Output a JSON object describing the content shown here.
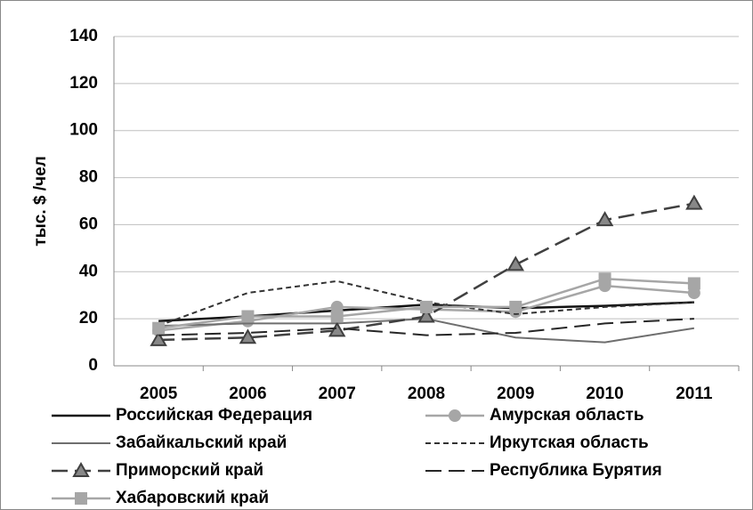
{
  "chart_data": {
    "type": "line",
    "y_label": "тыс. $ /чел",
    "categories": [
      "2005",
      "2006",
      "2007",
      "2008",
      "2009",
      "2010",
      "2011"
    ],
    "ylim": [
      0,
      140
    ],
    "yticks": [
      0,
      20,
      40,
      60,
      80,
      100,
      120,
      140
    ],
    "grid": true,
    "series": [
      {
        "name": "Российская Федерация",
        "color": "#111111",
        "width": 2.5,
        "dash": "solid",
        "marker": "none",
        "values": [
          19,
          21,
          23.5,
          26,
          24.5,
          25.5,
          27
        ]
      },
      {
        "name": "Амурская область",
        "color": "#a6a6a6",
        "width": 2.5,
        "dash": "solid",
        "marker": "circle",
        "values": [
          15,
          19,
          25,
          24,
          23,
          34,
          31
        ]
      },
      {
        "name": "Забайкальский край",
        "color": "#6e6e6e",
        "width": 2,
        "dash": "solid",
        "marker": "none",
        "values": [
          17,
          18,
          18,
          20,
          12,
          10,
          16
        ]
      },
      {
        "name": "Иркутская область",
        "color": "#333333",
        "width": 2,
        "dash": "short",
        "marker": "none",
        "values": [
          17,
          31,
          36,
          27,
          22,
          25,
          27
        ]
      },
      {
        "name": "Приморский край",
        "color": "#404040",
        "width": 2.5,
        "dash": "long",
        "marker": "triangle",
        "values": [
          11,
          12,
          15,
          21,
          43,
          62,
          69
        ]
      },
      {
        "name": "Республика Бурятия",
        "color": "#262626",
        "width": 2,
        "dash": "long",
        "marker": "none",
        "values": [
          13,
          14,
          16,
          13,
          14,
          18,
          20
        ]
      },
      {
        "name": "Хабаровский край",
        "color": "#a6a6a6",
        "width": 2.5,
        "dash": "solid",
        "marker": "square",
        "values": [
          16,
          21,
          21,
          25,
          25,
          37,
          35
        ]
      }
    ]
  }
}
